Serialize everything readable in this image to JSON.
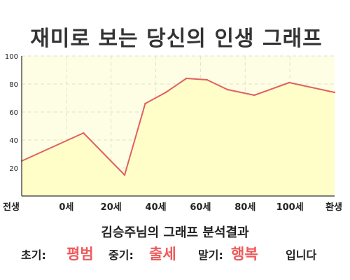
{
  "chart_data": {
    "type": "area",
    "title": "재미로 보는 당신의 인생 그래프",
    "subtitle": "김승주님의 그래프 분석결과",
    "xlabel": "",
    "ylabel": "",
    "ylim": [
      0,
      100
    ],
    "y_ticks": [
      20,
      40,
      60,
      80,
      100
    ],
    "x_tick_labels": [
      "전생",
      "0세",
      "20세",
      "40세",
      "60세",
      "80세",
      "100세",
      "환생"
    ],
    "grid": true,
    "series": [
      {
        "x": [
          -30,
          0,
          20,
          30,
          40,
          50,
          60,
          70,
          83,
          100,
          122
        ],
        "values": [
          25,
          45,
          15,
          66,
          74,
          84,
          83,
          76,
          72,
          81,
          74
        ]
      }
    ],
    "colors": {
      "line": "#e06060",
      "fill": "#fffdc8",
      "plot_bg": "#fefee5",
      "axis": "#555555",
      "grid": "#e2e2c8",
      "accent": "#ee5a5a"
    }
  },
  "summary": {
    "early_label": "초기:",
    "early_value": "평범",
    "middle_label": "중기:",
    "middle_value": "출세",
    "late_label": "말기:",
    "late_value": "행복",
    "ending": "입니다"
  }
}
